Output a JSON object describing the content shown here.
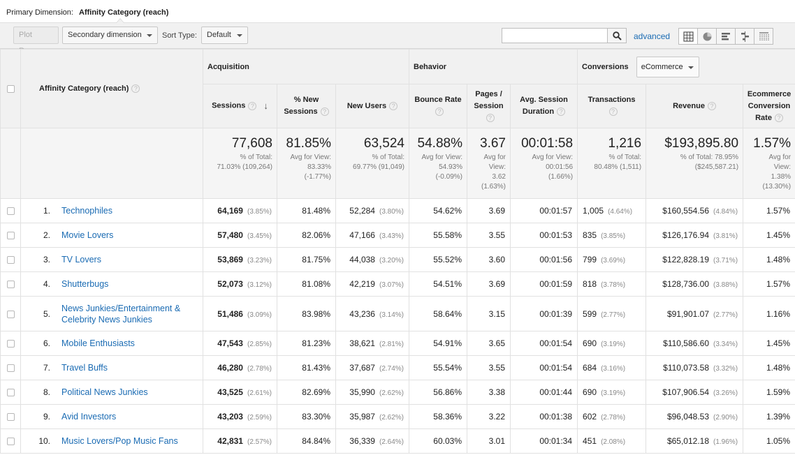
{
  "primary_dimension": {
    "label": "Primary Dimension:",
    "value": "Affinity Category (reach)"
  },
  "toolbar": {
    "plot_rows": "Plot Rows",
    "secondary_dimension": "Secondary dimension",
    "sort_type_label": "Sort Type:",
    "sort_type_value": "Default",
    "search_placeholder": "",
    "advanced": "advanced",
    "views": [
      "table-icon",
      "pie-icon",
      "bar-icon",
      "comparison-icon",
      "pivot-icon"
    ]
  },
  "table": {
    "dimension_header": "Affinity Category (reach)",
    "groups": {
      "acquisition": "Acquisition",
      "behavior": "Behavior",
      "conversions": "Conversions",
      "conversions_select": "eCommerce"
    },
    "columns": {
      "sessions": "Sessions",
      "new_sessions_line1": "% New",
      "new_sessions_line2": "Sessions",
      "new_users": "New Users",
      "bounce_line1": "Bounce Rate",
      "pages_line1": "Pages /",
      "pages_line2": "Session",
      "duration_line1": "Avg. Session",
      "duration_line2": "Duration",
      "transactions": "Transactions",
      "revenue": "Revenue",
      "ecr_line1": "Ecommerce",
      "ecr_line2": "Conversion",
      "ecr_line3": "Rate"
    },
    "totals": {
      "sessions": {
        "value": "77,608",
        "sub1": "% of Total:",
        "sub2": "71.03% (109,264)"
      },
      "new_sessions": {
        "value": "81.85%",
        "sub1": "Avg for View:",
        "sub2": "83.33%",
        "sub3": "(-1.77%)"
      },
      "new_users": {
        "value": "63,524",
        "sub1": "% of Total:",
        "sub2": "69.77% (91,049)"
      },
      "bounce": {
        "value": "54.88%",
        "sub1": "Avg for View:",
        "sub2": "54.93%",
        "sub3": "(-0.09%)"
      },
      "pages": {
        "value": "3.67",
        "sub1": "Avg for",
        "sub2": "View:",
        "sub3": "3.62",
        "sub4": "(1.63%)"
      },
      "duration": {
        "value": "00:01:58",
        "sub1": "Avg for View:",
        "sub2": "00:01:56",
        "sub3": "(1.66%)"
      },
      "transactions": {
        "value": "1,216",
        "sub1": "% of Total:",
        "sub2": "80.48% (1,511)"
      },
      "revenue": {
        "value": "$193,895.80",
        "sub1": "% of Total: 78.95%",
        "sub2": "($245,587.21)"
      },
      "ecr": {
        "value": "1.57%",
        "sub1": "Avg for",
        "sub2": "View:",
        "sub3": "1.38%",
        "sub4": "(13.30%)"
      }
    },
    "rows": [
      {
        "rank": "1.",
        "name": "Technophiles",
        "sessions": "64,169",
        "sessions_pct": "(3.85%)",
        "new_sessions": "81.48%",
        "new_users": "52,284",
        "new_users_pct": "(3.80%)",
        "bounce": "54.62%",
        "pages": "3.69",
        "duration": "00:01:57",
        "transactions": "1,005",
        "transactions_pct": "(4.64%)",
        "revenue": "$160,554.56",
        "revenue_pct": "(4.84%)",
        "ecr": "1.57%"
      },
      {
        "rank": "2.",
        "name": "Movie Lovers",
        "sessions": "57,480",
        "sessions_pct": "(3.45%)",
        "new_sessions": "82.06%",
        "new_users": "47,166",
        "new_users_pct": "(3.43%)",
        "bounce": "55.58%",
        "pages": "3.55",
        "duration": "00:01:53",
        "transactions": "835",
        "transactions_pct": "(3.85%)",
        "revenue": "$126,176.94",
        "revenue_pct": "(3.81%)",
        "ecr": "1.45%"
      },
      {
        "rank": "3.",
        "name": "TV Lovers",
        "sessions": "53,869",
        "sessions_pct": "(3.23%)",
        "new_sessions": "81.75%",
        "new_users": "44,038",
        "new_users_pct": "(3.20%)",
        "bounce": "55.52%",
        "pages": "3.60",
        "duration": "00:01:56",
        "transactions": "799",
        "transactions_pct": "(3.69%)",
        "revenue": "$122,828.19",
        "revenue_pct": "(3.71%)",
        "ecr": "1.48%"
      },
      {
        "rank": "4.",
        "name": "Shutterbugs",
        "sessions": "52,073",
        "sessions_pct": "(3.12%)",
        "new_sessions": "81.08%",
        "new_users": "42,219",
        "new_users_pct": "(3.07%)",
        "bounce": "54.51%",
        "pages": "3.69",
        "duration": "00:01:59",
        "transactions": "818",
        "transactions_pct": "(3.78%)",
        "revenue": "$128,736.00",
        "revenue_pct": "(3.88%)",
        "ecr": "1.57%"
      },
      {
        "rank": "5.",
        "name": "News Junkies/Entertainment & Celebrity News Junkies",
        "sessions": "51,486",
        "sessions_pct": "(3.09%)",
        "new_sessions": "83.98%",
        "new_users": "43,236",
        "new_users_pct": "(3.14%)",
        "bounce": "58.64%",
        "pages": "3.15",
        "duration": "00:01:39",
        "transactions": "599",
        "transactions_pct": "(2.77%)",
        "revenue": "$91,901.07",
        "revenue_pct": "(2.77%)",
        "ecr": "1.16%"
      },
      {
        "rank": "6.",
        "name": "Mobile Enthusiasts",
        "sessions": "47,543",
        "sessions_pct": "(2.85%)",
        "new_sessions": "81.23%",
        "new_users": "38,621",
        "new_users_pct": "(2.81%)",
        "bounce": "54.91%",
        "pages": "3.65",
        "duration": "00:01:54",
        "transactions": "690",
        "transactions_pct": "(3.19%)",
        "revenue": "$110,586.60",
        "revenue_pct": "(3.34%)",
        "ecr": "1.45%"
      },
      {
        "rank": "7.",
        "name": "Travel Buffs",
        "sessions": "46,280",
        "sessions_pct": "(2.78%)",
        "new_sessions": "81.43%",
        "new_users": "37,687",
        "new_users_pct": "(2.74%)",
        "bounce": "55.54%",
        "pages": "3.55",
        "duration": "00:01:54",
        "transactions": "684",
        "transactions_pct": "(3.16%)",
        "revenue": "$110,073.58",
        "revenue_pct": "(3.32%)",
        "ecr": "1.48%"
      },
      {
        "rank": "8.",
        "name": "Political News Junkies",
        "sessions": "43,525",
        "sessions_pct": "(2.61%)",
        "new_sessions": "82.69%",
        "new_users": "35,990",
        "new_users_pct": "(2.62%)",
        "bounce": "56.86%",
        "pages": "3.38",
        "duration": "00:01:44",
        "transactions": "690",
        "transactions_pct": "(3.19%)",
        "revenue": "$107,906.54",
        "revenue_pct": "(3.26%)",
        "ecr": "1.59%"
      },
      {
        "rank": "9.",
        "name": "Avid Investors",
        "sessions": "43,203",
        "sessions_pct": "(2.59%)",
        "new_sessions": "83.30%",
        "new_users": "35,987",
        "new_users_pct": "(2.62%)",
        "bounce": "58.36%",
        "pages": "3.22",
        "duration": "00:01:38",
        "transactions": "602",
        "transactions_pct": "(2.78%)",
        "revenue": "$96,048.53",
        "revenue_pct": "(2.90%)",
        "ecr": "1.39%"
      },
      {
        "rank": "10.",
        "name": "Music Lovers/Pop Music Fans",
        "sessions": "42,831",
        "sessions_pct": "(2.57%)",
        "new_sessions": "84.84%",
        "new_users": "36,339",
        "new_users_pct": "(2.64%)",
        "bounce": "60.03%",
        "pages": "3.01",
        "duration": "00:01:34",
        "transactions": "451",
        "transactions_pct": "(2.08%)",
        "revenue": "$65,012.18",
        "revenue_pct": "(1.96%)",
        "ecr": "1.05%"
      }
    ]
  }
}
